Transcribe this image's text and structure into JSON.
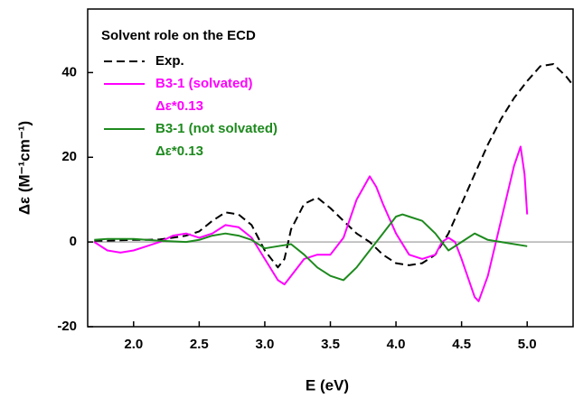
{
  "chart_data": {
    "type": "line",
    "legend_title": "Solvent role on the ECD",
    "x_label": "E (eV)",
    "y_label": "Δε (M⁻¹cm⁻¹)",
    "xlim": [
      1.65,
      5.35
    ],
    "ylim": [
      -20,
      55
    ],
    "xticks": [
      {
        "value": 2,
        "label": "2.0"
      },
      {
        "value": 2.5,
        "label": "2.5"
      },
      {
        "value": 3,
        "label": "3.0"
      },
      {
        "value": 3.5,
        "label": "3.5"
      },
      {
        "value": 4,
        "label": "4.0"
      },
      {
        "value": 4.5,
        "label": "4.5"
      },
      {
        "value": 5,
        "label": "5.0"
      }
    ],
    "yticks": [
      -20,
      0,
      20,
      40
    ],
    "reference_line": 0,
    "legend": "upper left",
    "series": [
      {
        "name": "Exp.",
        "color": "#000000",
        "dash": true,
        "x": [
          1.7,
          1.8,
          1.9,
          2.0,
          2.1,
          2.2,
          2.3,
          2.4,
          2.5,
          2.6,
          2.7,
          2.8,
          2.9,
          3.0,
          3.1,
          3.15,
          3.2,
          3.3,
          3.4,
          3.5,
          3.6,
          3.7,
          3.8,
          3.9,
          4.0,
          4.1,
          4.2,
          4.3,
          4.4,
          4.5,
          4.6,
          4.7,
          4.8,
          4.9,
          5.0,
          5.1,
          5.2,
          5.3,
          5.35
        ],
        "values": [
          0.3,
          0.3,
          0.4,
          0.5,
          0.5,
          0.6,
          1.0,
          1.5,
          2.5,
          5,
          7,
          6.5,
          4,
          -2,
          -6,
          -4,
          3,
          9,
          10.5,
          8,
          5,
          2,
          0,
          -3,
          -5,
          -5.5,
          -5,
          -3,
          2,
          9,
          16,
          23,
          29,
          34,
          38,
          41.5,
          42,
          39,
          37
        ]
      },
      {
        "name": "B3-1 (solvated)",
        "legend_note": "Δε*0.13",
        "color": "#ff00ff",
        "dash": false,
        "x": [
          1.7,
          1.8,
          1.9,
          2.0,
          2.1,
          2.2,
          2.3,
          2.4,
          2.5,
          2.6,
          2.7,
          2.8,
          2.9,
          3.0,
          3.1,
          3.15,
          3.2,
          3.3,
          3.4,
          3.5,
          3.6,
          3.7,
          3.8,
          3.85,
          3.9,
          4.0,
          4.1,
          4.2,
          4.3,
          4.35,
          4.4,
          4.45,
          4.5,
          4.6,
          4.63,
          4.7,
          4.8,
          4.9,
          4.95,
          4.98,
          5.0
        ],
        "values": [
          0,
          -2,
          -2.5,
          -2,
          -1,
          0,
          1.5,
          2,
          1,
          2,
          4,
          3.5,
          1,
          -4,
          -9,
          -10,
          -8,
          -4,
          -3,
          -3,
          1,
          10,
          15.5,
          13,
          9,
          2,
          -3,
          -4,
          -3,
          0,
          1,
          0,
          -4,
          -13,
          -14,
          -8,
          5,
          18,
          22.5,
          16,
          6.5
        ]
      },
      {
        "name": "B3-1 (not solvated)",
        "legend_note": "Δε*0.13",
        "color": "#1e8a1e",
        "dash": false,
        "x": [
          1.7,
          1.8,
          2.0,
          2.2,
          2.4,
          2.5,
          2.6,
          2.7,
          2.8,
          2.9,
          3.0,
          3.1,
          3.2,
          3.3,
          3.4,
          3.5,
          3.6,
          3.7,
          3.8,
          3.9,
          4.0,
          4.05,
          4.1,
          4.2,
          4.3,
          4.4,
          4.5,
          4.6,
          4.7,
          4.8,
          5.0
        ],
        "values": [
          0.5,
          0.7,
          0.7,
          0.3,
          0,
          0.5,
          1.5,
          2,
          1.5,
          0.5,
          -1.5,
          -1,
          -0.5,
          -3,
          -6,
          -8,
          -9,
          -6,
          -2,
          2,
          6,
          6.5,
          6,
          5,
          2,
          -2,
          0,
          2,
          0.5,
          0,
          -1
        ]
      }
    ]
  }
}
